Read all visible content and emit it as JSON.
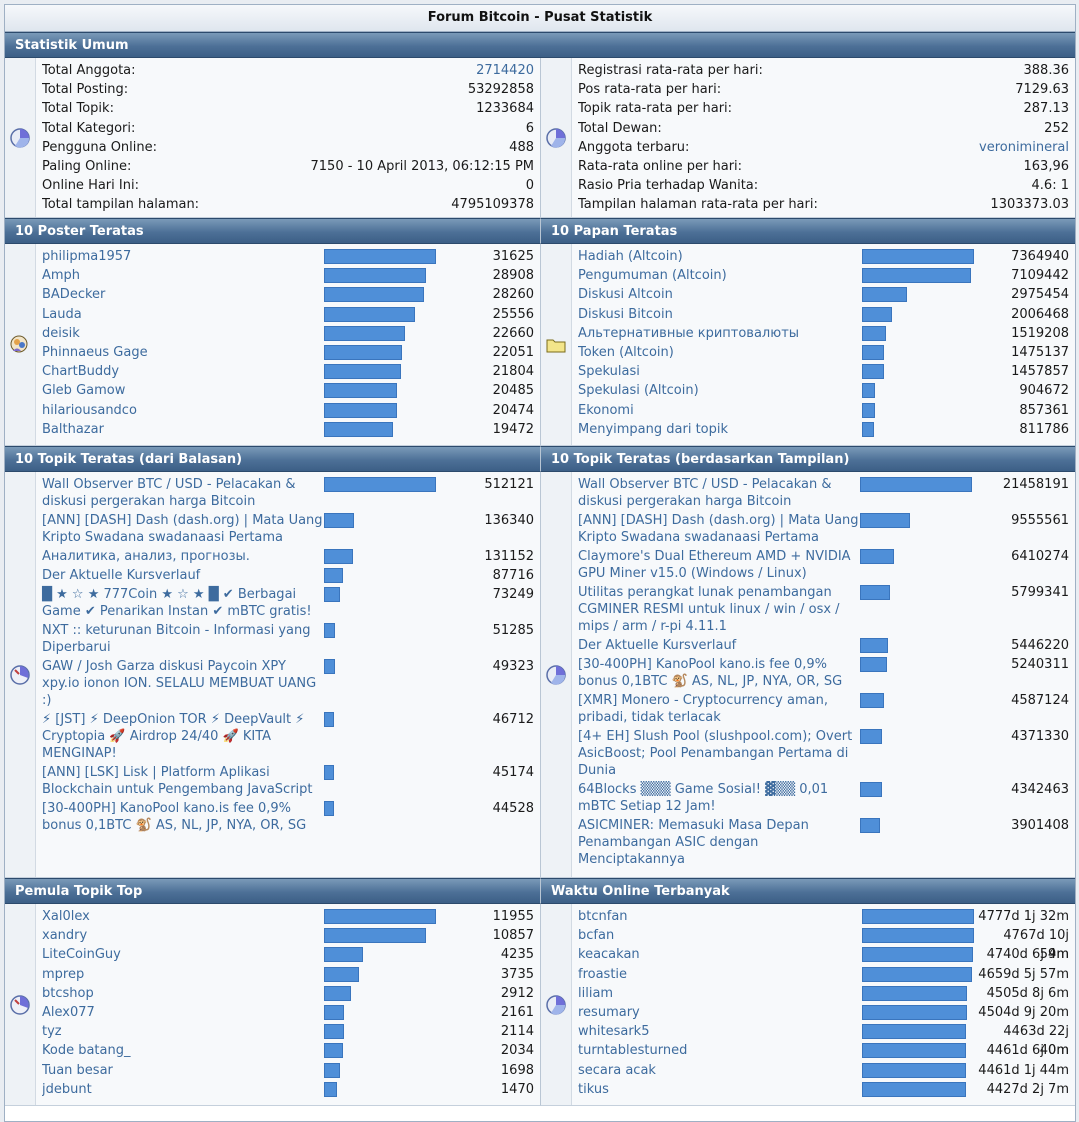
{
  "window_title": "Forum Bitcoin - Pusat Statistik",
  "colors": {
    "header": "#4d7097",
    "bar": "#4f8fd8",
    "link": "#3d6b9e"
  },
  "general": {
    "header": "Statistik Umum",
    "left": [
      {
        "label": "Total Anggota:",
        "value": "2714420",
        "link": true
      },
      {
        "label": "Total Posting:",
        "value": "53292858"
      },
      {
        "label": "Total Topik:",
        "value": "1233684"
      },
      {
        "label": "Total Kategori:",
        "value": "6"
      },
      {
        "label": "Pengguna Online:",
        "value": "488"
      },
      {
        "label": "Paling Online:",
        "value": "7150 - 10 April 2013, 06:12:15 PM"
      },
      {
        "label": "Online Hari Ini:",
        "value": "0"
      },
      {
        "label": "Total tampilan halaman:",
        "value": "4795109378"
      }
    ],
    "right": [
      {
        "label": "Registrasi rata-rata per hari:",
        "value": "388.36"
      },
      {
        "label": "Pos rata-rata per hari:",
        "value": "7129.63"
      },
      {
        "label": "Topik rata-rata per hari:",
        "value": "287.13"
      },
      {
        "label": "Total Dewan:",
        "value": "252"
      },
      {
        "label": "Anggota terbaru:",
        "value": "veronimineral",
        "link": true
      },
      {
        "label": "Rata-rata online per hari:",
        "value": "163,96"
      },
      {
        "label": "Rasio Pria terhadap Wanita:",
        "value": "4.6: 1"
      },
      {
        "label": "Tampilan halaman rata-rata per hari:",
        "value": "1303373.03"
      }
    ]
  },
  "top_posters": {
    "header": "10 Poster Teratas",
    "rows": [
      {
        "name": "philipma1957",
        "value": "31625",
        "pct": 100
      },
      {
        "name": "Amph",
        "value": "28908",
        "pct": 91
      },
      {
        "name": "BADecker",
        "value": "28260",
        "pct": 89
      },
      {
        "name": "Lauda",
        "value": "25556",
        "pct": 81
      },
      {
        "name": "deisik",
        "value": "22660",
        "pct": 72
      },
      {
        "name": "Phinnaeus Gage",
        "value": "22051",
        "pct": 70
      },
      {
        "name": "ChartBuddy",
        "value": "21804",
        "pct": 69
      },
      {
        "name": "Gleb Gamow",
        "value": "20485",
        "pct": 65
      },
      {
        "name": "hilariousandco",
        "value": "20474",
        "pct": 65
      },
      {
        "name": "Balthazar",
        "value": "19472",
        "pct": 62
      }
    ]
  },
  "top_boards": {
    "header": "10 Papan Teratas",
    "rows": [
      {
        "name": "Hadiah (Altcoin)",
        "value": "7364940",
        "pct": 100
      },
      {
        "name": "Pengumuman (Altcoin)",
        "value": "7109442",
        "pct": 97
      },
      {
        "name": "Diskusi Altcoin",
        "value": "2975454",
        "pct": 40
      },
      {
        "name": "Diskusi Bitcoin",
        "value": "2006468",
        "pct": 27
      },
      {
        "name": "Альтернативные криптовалюты",
        "value": "1519208",
        "pct": 21
      },
      {
        "name": "Token (Altcoin)",
        "value": "1475137",
        "pct": 20
      },
      {
        "name": "Spekulasi",
        "value": "1457857",
        "pct": 20
      },
      {
        "name": "Spekulasi (Altcoin)",
        "value": "904672",
        "pct": 12
      },
      {
        "name": "Ekonomi",
        "value": "857361",
        "pct": 12
      },
      {
        "name": "Menyimpang dari topik",
        "value": "811786",
        "pct": 11
      }
    ]
  },
  "top_topics_replies": {
    "header": "10 Topik Teratas (dari Balasan)",
    "rows": [
      {
        "name": "Wall Observer BTC / USD - Pelacakan & diskusi pergerakan harga Bitcoin",
        "value": "512121",
        "pct": 100
      },
      {
        "name": "[ANN] [DASH] Dash (dash.org) | Mata Uang Kripto Swadana swadanaasi Pertama",
        "value": "136340",
        "pct": 27
      },
      {
        "name": "Аналитика, анализ, прогнозы.",
        "value": "131152",
        "pct": 26
      },
      {
        "name": "Der Aktuelle Kursverlauf",
        "value": "87716",
        "pct": 17
      },
      {
        "name": "█ ★ ☆ ★ 777Coin ★ ☆ ★ █ ✔ Berbagai Game ✔ Penarikan Instan ✔ mBTC gratis!",
        "value": "73249",
        "pct": 14
      },
      {
        "name": "NXT :: keturunan Bitcoin - Informasi yang Diperbarui",
        "value": "51285",
        "pct": 10
      },
      {
        "name": "GAW / Josh Garza diskusi Paycoin XPY xpy.io ionon ION. SELALU MEMBUAT UANG :)",
        "value": "49323",
        "pct": 10
      },
      {
        "name": "⚡ [JST] ⚡ DeepOnion TOR ⚡ DeepVault ⚡ Cryptopia 🚀 Airdrop 24/40 🚀 KITA MENGINAP!",
        "value": "46712",
        "pct": 9
      },
      {
        "name": "[ANN] [LSK] Lisk | Platform Aplikasi Blockchain untuk Pengembang JavaScript",
        "value": "45174",
        "pct": 9
      },
      {
        "name": "[30-400PH] KanoPool kano.is fee 0,9% bonus 0,1BTC 🐒 AS, NL, JP, NYA, OR, SG",
        "value": "44528",
        "pct": 9
      }
    ]
  },
  "top_topics_views": {
    "header": "10 Topik Teratas (berdasarkan Tampilan)",
    "rows": [
      {
        "name": "Wall Observer BTC / USD - Pelacakan & diskusi pergerakan harga Bitcoin",
        "value": "21458191",
        "pct": 100
      },
      {
        "name": "[ANN] [DASH] Dash (dash.org) | Mata Uang Kripto Swadana swadanaasi Pertama",
        "value": "9555561",
        "pct": 45
      },
      {
        "name": "Claymore's Dual Ethereum AMD + NVIDIA GPU Miner v15.0 (Windows / Linux)",
        "value": "6410274",
        "pct": 30
      },
      {
        "name": "Utilitas perangkat lunak penambangan CGMINER RESMI untuk linux / win / osx / mips / arm / r-pi 4.11.1",
        "value": "5799341",
        "pct": 27
      },
      {
        "name": "Der Aktuelle Kursverlauf",
        "value": "5446220",
        "pct": 25
      },
      {
        "name": "[30-400PH] KanoPool kano.is fee 0,9% bonus 0,1BTC 🐒 AS, NL, JP, NYA, OR, SG",
        "value": "5240311",
        "pct": 24
      },
      {
        "name": "[XMR] Monero - Cryptocurrency aman, pribadi, tidak terlacak",
        "value": "4587124",
        "pct": 21
      },
      {
        "name": "[4+ EH] Slush Pool (slushpool.com); Overt AsicBoost; Pool Penambangan Pertama di Dunia",
        "value": "4371330",
        "pct": 20
      },
      {
        "name": "64Blocks ▒▒▒ Game Sosial! ▓▒▒ 0,01 mBTC Setiap 12 Jam!",
        "value": "4342463",
        "pct": 20
      },
      {
        "name": "ASICMINER: Memasuki Masa Depan Penambangan ASIC dengan Menciptakannya",
        "value": "3901408",
        "pct": 18
      }
    ]
  },
  "top_starters": {
    "header": "Pemula Topik Top",
    "rows": [
      {
        "name": "Xal0lex",
        "value": "11955",
        "pct": 100
      },
      {
        "name": "xandry",
        "value": "10857",
        "pct": 91
      },
      {
        "name": "LiteCoinGuy",
        "value": "4235",
        "pct": 35
      },
      {
        "name": "mprep",
        "value": "3735",
        "pct": 31
      },
      {
        "name": "btcshop",
        "value": "2912",
        "pct": 24
      },
      {
        "name": "Alex077",
        "value": "2161",
        "pct": 18
      },
      {
        "name": "tyz",
        "value": "2114",
        "pct": 18
      },
      {
        "name": "Kode batang_",
        "value": "2034",
        "pct": 17
      },
      {
        "name": "Tuan besar",
        "value": "1698",
        "pct": 14
      },
      {
        "name": "jdebunt",
        "value": "1470",
        "pct": 12
      }
    ]
  },
  "most_online": {
    "header": "Waktu Online Terbanyak",
    "rows": [
      {
        "name": "btcnfan",
        "value": "4777d 1j 32m",
        "pct": 100
      },
      {
        "name": "bcfan",
        "value": "4767d 10j 59m",
        "pct": 100
      },
      {
        "name": "keacakan",
        "value": "4740d 6j 4m",
        "pct": 99
      },
      {
        "name": "froastie",
        "value": "4659d 5j 57m",
        "pct": 98
      },
      {
        "name": "liliam",
        "value": "4505d 8j 6m",
        "pct": 94
      },
      {
        "name": "resumary",
        "value": "4504d 9j 20m",
        "pct": 94
      },
      {
        "name": "whitesark5",
        "value": "4463d 22j 40m",
        "pct": 93
      },
      {
        "name": "turntablesturned",
        "value": "4461d 6j 0m",
        "pct": 93
      },
      {
        "name": "secara acak",
        "value": "4461d 1j 44m",
        "pct": 93
      },
      {
        "name": "tikus",
        "value": "4427d 2j 7m",
        "pct": 93
      }
    ]
  }
}
